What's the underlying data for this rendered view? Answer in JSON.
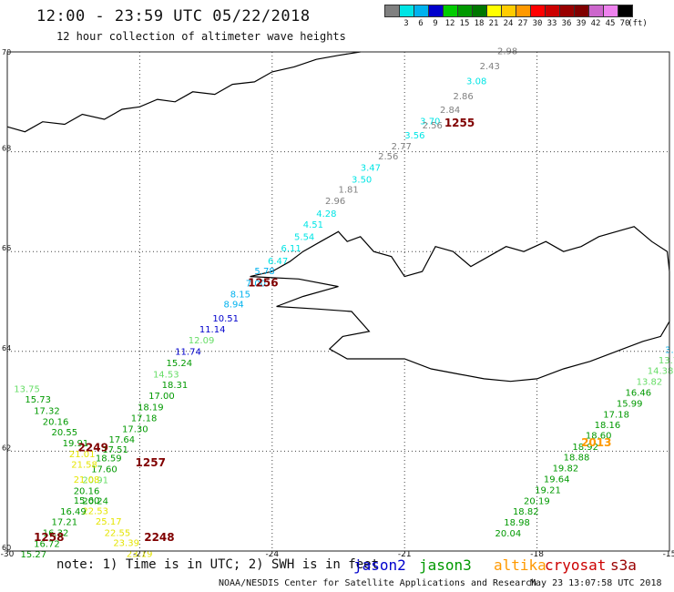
{
  "header": {
    "title": "12:00 - 23:59 UTC 05/22/2018",
    "subtitle": "12 hour collection of altimeter wave heights"
  },
  "color_scale": {
    "unit": "(ft)",
    "items": [
      {
        "label": "",
        "color": "#808080"
      },
      {
        "label": "3",
        "color": "#00e5e5"
      },
      {
        "label": "6",
        "color": "#00b2ee"
      },
      {
        "label": "9",
        "color": "#0000cc"
      },
      {
        "label": "12",
        "color": "#00cc00"
      },
      {
        "label": "15",
        "color": "#009900"
      },
      {
        "label": "18",
        "color": "#007700"
      },
      {
        "label": "21",
        "color": "#ffff00"
      },
      {
        "label": "24",
        "color": "#ffcc00"
      },
      {
        "label": "27",
        "color": "#ff9900"
      },
      {
        "label": "30",
        "color": "#ff0000"
      },
      {
        "label": "33",
        "color": "#cc0000"
      },
      {
        "label": "36",
        "color": "#990000"
      },
      {
        "label": "39",
        "color": "#800000"
      },
      {
        "label": "42",
        "color": "#cc66cc"
      },
      {
        "label": "45",
        "color": "#ee82ee"
      },
      {
        "label": "70",
        "color": "#000000"
      }
    ]
  },
  "axes": {
    "lat_ticks": [
      "70",
      "68",
      "66",
      "64",
      "62",
      "60"
    ],
    "lon_ticks": [
      "-30",
      "-27",
      "-24",
      "-21",
      "-18",
      "-15"
    ]
  },
  "track_colors": {
    "grey": "#808080",
    "cyan": "#00e5e5",
    "sky": "#00b2ee",
    "blue": "#0000cc",
    "lightgreen": "#66dd66",
    "green": "#009900",
    "yellow": "#e5e500",
    "orange": "#ff9900",
    "darkred": "#800000"
  },
  "tracks": [
    {
      "name": "track-a",
      "points": [
        {
          "lon": -18.9,
          "lat": 69.95,
          "v": "2.98",
          "c": "grey"
        },
        {
          "lon": -19.3,
          "lat": 69.65,
          "v": "2.43",
          "c": "grey"
        },
        {
          "lon": -19.6,
          "lat": 69.35,
          "v": "3.08",
          "c": "cyan"
        },
        {
          "lon": -19.9,
          "lat": 69.05,
          "v": "2.86",
          "c": "grey"
        },
        {
          "lon": -20.2,
          "lat": 68.78,
          "v": "2.84",
          "c": "grey"
        },
        {
          "lon": -20.65,
          "lat": 68.55,
          "v": "3.70",
          "c": "cyan"
        },
        {
          "lon": -20.6,
          "lat": 68.47,
          "v": "2.56",
          "c": "grey"
        },
        {
          "lon": -21.0,
          "lat": 68.27,
          "v": "3.56",
          "c": "cyan"
        },
        {
          "lon": -21.3,
          "lat": 68.05,
          "v": "2.77",
          "c": "grey"
        },
        {
          "lon": -21.6,
          "lat": 67.85,
          "v": "2.56",
          "c": "grey"
        },
        {
          "lon": -22.0,
          "lat": 67.62,
          "v": "3.47",
          "c": "cyan"
        },
        {
          "lon": -22.2,
          "lat": 67.38,
          "v": "3.50",
          "c": "cyan"
        },
        {
          "lon": -22.5,
          "lat": 67.18,
          "v": "1.81",
          "c": "grey"
        },
        {
          "lon": -22.8,
          "lat": 66.95,
          "v": "2.96",
          "c": "grey"
        },
        {
          "lon": -23.0,
          "lat": 66.7,
          "v": "4.28",
          "c": "cyan"
        },
        {
          "lon": -23.3,
          "lat": 66.48,
          "v": "4.51",
          "c": "cyan"
        },
        {
          "lon": -23.5,
          "lat": 66.23,
          "v": "5.54",
          "c": "cyan"
        },
        {
          "lon": -23.8,
          "lat": 66.0,
          "v": "6.11",
          "c": "cyan"
        },
        {
          "lon": -24.1,
          "lat": 65.75,
          "v": "6.47",
          "c": "cyan"
        },
        {
          "lon": -24.4,
          "lat": 65.55,
          "v": "5.78",
          "c": "sky"
        },
        {
          "lon": -24.6,
          "lat": 65.3,
          "v": "7.00",
          "c": "sky"
        },
        {
          "lon": -24.95,
          "lat": 65.08,
          "v": "8.15",
          "c": "sky"
        },
        {
          "lon": -25.1,
          "lat": 64.88,
          "v": "8.94",
          "c": "sky"
        },
        {
          "lon": -25.35,
          "lat": 64.6,
          "v": "10.51",
          "c": "blue"
        },
        {
          "lon": -25.65,
          "lat": 64.38,
          "v": "11.14",
          "c": "blue"
        },
        {
          "lon": -25.9,
          "lat": 64.16,
          "v": "12.09",
          "c": "lightgreen"
        },
        {
          "lon": -26.2,
          "lat": 63.93,
          "v": "11.74",
          "c": "blue"
        },
        {
          "lon": -26.4,
          "lat": 63.7,
          "v": "15.24",
          "c": "green"
        },
        {
          "lon": -26.7,
          "lat": 63.48,
          "v": "14.53",
          "c": "lightgreen"
        },
        {
          "lon": -26.5,
          "lat": 63.27,
          "v": "18.31",
          "c": "green"
        },
        {
          "lon": -26.8,
          "lat": 63.05,
          "v": "17.00",
          "c": "green"
        },
        {
          "lon": -27.05,
          "lat": 62.82,
          "v": "18.19",
          "c": "green"
        },
        {
          "lon": -27.2,
          "lat": 62.6,
          "v": "17.18",
          "c": "green"
        },
        {
          "lon": -27.4,
          "lat": 62.38,
          "v": "17.30",
          "c": "green"
        },
        {
          "lon": -27.7,
          "lat": 62.17,
          "v": "17.64",
          "c": "green"
        },
        {
          "lon": -27.85,
          "lat": 61.97,
          "v": "17.51",
          "c": "green"
        },
        {
          "lon": -28.0,
          "lat": 61.8,
          "v": "18.59",
          "c": "green"
        },
        {
          "lon": -28.1,
          "lat": 61.58,
          "v": "17.60",
          "c": "green"
        },
        {
          "lon": -28.3,
          "lat": 61.36,
          "v": "20.91",
          "c": "lightgreen"
        },
        {
          "lon": -28.5,
          "lat": 61.14,
          "v": "20.16",
          "c": "green"
        },
        {
          "lon": -28.3,
          "lat": 60.94,
          "v": "20.24",
          "c": "green"
        },
        {
          "lon": -28.3,
          "lat": 60.74,
          "v": "22.53",
          "c": "yellow"
        },
        {
          "lon": -28.0,
          "lat": 60.53,
          "v": "25.17",
          "c": "yellow"
        },
        {
          "lon": -27.8,
          "lat": 60.3,
          "v": "22.55",
          "c": "yellow"
        },
        {
          "lon": -27.6,
          "lat": 60.1,
          "v": "23.39",
          "c": "yellow"
        },
        {
          "lon": -27.3,
          "lat": 59.88,
          "v": "23.19",
          "c": "yellow"
        }
      ]
    },
    {
      "name": "track-b",
      "points": [
        {
          "lon": -29.85,
          "lat": 63.18,
          "v": "13.75",
          "c": "lightgreen"
        },
        {
          "lon": -29.6,
          "lat": 62.97,
          "v": "15.73",
          "c": "green"
        },
        {
          "lon": -29.4,
          "lat": 62.75,
          "v": "17.32",
          "c": "green"
        },
        {
          "lon": -29.2,
          "lat": 62.53,
          "v": "20.16",
          "c": "green"
        },
        {
          "lon": -29.0,
          "lat": 62.32,
          "v": "20.55",
          "c": "green"
        },
        {
          "lon": -28.75,
          "lat": 62.1,
          "v": "19.91",
          "c": "green"
        },
        {
          "lon": -28.6,
          "lat": 61.88,
          "v": "21.01",
          "c": "yellow"
        },
        {
          "lon": -28.55,
          "lat": 61.67,
          "v": "21.58",
          "c": "yellow"
        },
        {
          "lon": -28.5,
          "lat": 61.37,
          "v": "21.08",
          "c": "yellow"
        },
        {
          "lon": -28.5,
          "lat": 60.95,
          "v": "15.60",
          "c": "green"
        },
        {
          "lon": -28.8,
          "lat": 60.73,
          "v": "16.49",
          "c": "green"
        },
        {
          "lon": -29.0,
          "lat": 60.52,
          "v": "17.21",
          "c": "green"
        },
        {
          "lon": -29.2,
          "lat": 60.3,
          "v": "16.32",
          "c": "green"
        },
        {
          "lon": -29.4,
          "lat": 60.08,
          "v": "16.72",
          "c": "green"
        },
        {
          "lon": -29.7,
          "lat": 59.87,
          "v": "15.27",
          "c": "green"
        }
      ]
    },
    {
      "name": "track-c",
      "points": [
        {
          "lon": -15.1,
          "lat": 63.97,
          "v": "3.70",
          "c": "sky"
        },
        {
          "lon": -15.25,
          "lat": 63.76,
          "v": "13.78",
          "c": "lightgreen"
        },
        {
          "lon": -15.5,
          "lat": 63.55,
          "v": "14.38",
          "c": "lightgreen"
        },
        {
          "lon": -15.75,
          "lat": 63.33,
          "v": "13.82",
          "c": "lightgreen"
        },
        {
          "lon": -16.0,
          "lat": 63.11,
          "v": "16.46",
          "c": "green"
        },
        {
          "lon": -16.2,
          "lat": 62.89,
          "v": "15.99",
          "c": "green"
        },
        {
          "lon": -16.5,
          "lat": 62.67,
          "v": "17.18",
          "c": "green"
        },
        {
          "lon": -16.7,
          "lat": 62.46,
          "v": "18.16",
          "c": "green"
        },
        {
          "lon": -16.9,
          "lat": 62.25,
          "v": "18.60",
          "c": "green"
        },
        {
          "lon": -17.2,
          "lat": 62.03,
          "v": "18.92",
          "c": "green"
        },
        {
          "lon": -17.4,
          "lat": 61.82,
          "v": "18.88",
          "c": "green"
        },
        {
          "lon": -17.65,
          "lat": 61.6,
          "v": "19.82",
          "c": "green"
        },
        {
          "lon": -17.85,
          "lat": 61.38,
          "v": "19.64",
          "c": "green"
        },
        {
          "lon": -18.05,
          "lat": 61.16,
          "v": "19.21",
          "c": "green"
        },
        {
          "lon": -18.3,
          "lat": 60.94,
          "v": "20.19",
          "c": "green"
        },
        {
          "lon": -18.55,
          "lat": 60.73,
          "v": "18.82",
          "c": "green"
        },
        {
          "lon": -18.75,
          "lat": 60.51,
          "v": "18.98",
          "c": "green"
        },
        {
          "lon": -18.95,
          "lat": 60.29,
          "v": "20.04",
          "c": "green"
        }
      ]
    }
  ],
  "time_tags": [
    {
      "lon": -20.1,
      "lat": 68.5,
      "v": "1255",
      "c": "darkred"
    },
    {
      "lon": -24.55,
      "lat": 65.3,
      "v": "1256",
      "c": "darkred"
    },
    {
      "lon": -27.1,
      "lat": 61.7,
      "v": "1257",
      "c": "darkred"
    },
    {
      "lon": -28.4,
      "lat": 62.0,
      "v": "2249",
      "c": "darkred"
    },
    {
      "lon": -29.4,
      "lat": 60.2,
      "v": "1258",
      "c": "darkred"
    },
    {
      "lon": -26.9,
      "lat": 60.2,
      "v": "2248",
      "c": "darkred"
    },
    {
      "lon": -17.0,
      "lat": 62.1,
      "v": "2013",
      "c": "orange"
    }
  ],
  "footer": {
    "note": "note: 1) Time is in UTC; 2) SWH is in feet",
    "satellites": [
      {
        "label": "jason2",
        "color": "#0000cc"
      },
      {
        "label": "jason3",
        "color": "#009900"
      },
      {
        "label": "altika",
        "color": "#ff9900"
      },
      {
        "label": "cryosat",
        "color": "#cc0000"
      },
      {
        "label": "s3a",
        "color": "#990000"
      }
    ],
    "credit": "NOAA/NESDIS Center for Satellite Applications and Research",
    "generated": "May 23 13:07:58 UTC 2018"
  }
}
